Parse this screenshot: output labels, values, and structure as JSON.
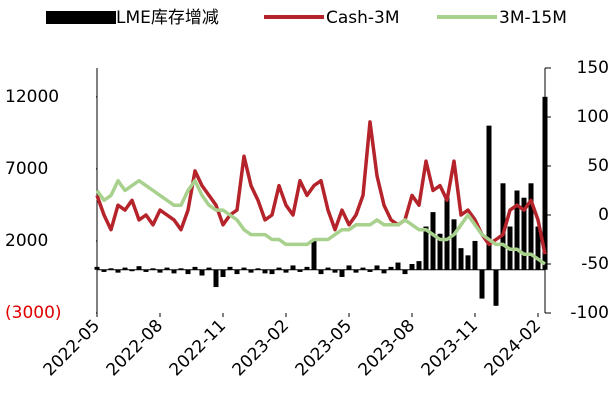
{
  "chart_data": {
    "type": "bar-line",
    "categories": [
      "2022-05",
      null,
      null,
      null,
      null,
      null,
      null,
      null,
      null,
      "2022-08",
      null,
      null,
      null,
      null,
      null,
      null,
      null,
      null,
      "2022-11",
      null,
      null,
      null,
      null,
      null,
      null,
      null,
      null,
      "2023-02",
      null,
      null,
      null,
      null,
      null,
      null,
      null,
      null,
      "2023-05",
      null,
      null,
      null,
      null,
      null,
      null,
      null,
      null,
      "2023-08",
      null,
      null,
      null,
      null,
      null,
      null,
      null,
      null,
      "2023-11",
      null,
      null,
      null,
      null,
      null,
      null,
      null,
      null,
      "2024-02",
      null
    ],
    "series": [
      {
        "name": "LME库存增减",
        "color": "#000000",
        "axis": "y",
        "values": [
          200,
          -150,
          100,
          -200,
          150,
          -100,
          250,
          -150,
          100,
          -200,
          150,
          -250,
          100,
          -300,
          200,
          -400,
          150,
          -1200,
          -500,
          200,
          -300,
          150,
          -200,
          100,
          -250,
          -300,
          150,
          -200,
          300,
          -150,
          200,
          2000,
          -300,
          150,
          -200,
          -500,
          300,
          -200,
          150,
          -150,
          300,
          -250,
          200,
          500,
          -300,
          400,
          600,
          3000,
          4000,
          2500,
          5000,
          3500,
          1500,
          1000,
          2000,
          -2000,
          10000,
          -2500,
          6000,
          3000,
          5500,
          5000,
          6000,
          3000,
          12000
        ]
      },
      {
        "name": "Cash-3M",
        "color": "#b5232b",
        "axis": "y2",
        "values": [
          20,
          0,
          -15,
          10,
          5,
          15,
          -5,
          0,
          -10,
          5,
          0,
          -5,
          -15,
          5,
          45,
          30,
          20,
          10,
          -10,
          0,
          5,
          60,
          30,
          15,
          -5,
          0,
          30,
          10,
          0,
          35,
          20,
          30,
          35,
          5,
          -15,
          5,
          -10,
          0,
          20,
          95,
          40,
          10,
          -5,
          -10,
          -5,
          20,
          10,
          55,
          25,
          30,
          15,
          55,
          0,
          5,
          -5,
          -20,
          -30,
          -25,
          -20,
          5,
          10,
          5,
          15,
          -5,
          -40
        ]
      },
      {
        "name": "3M-15M",
        "color": "#a9d18e",
        "axis": "y2",
        "values": [
          25,
          15,
          20,
          35,
          25,
          30,
          35,
          30,
          25,
          20,
          15,
          10,
          10,
          25,
          35,
          20,
          10,
          5,
          5,
          0,
          -5,
          -15,
          -20,
          -20,
          -20,
          -25,
          -25,
          -30,
          -30,
          -30,
          -30,
          -25,
          -25,
          -25,
          -20,
          -15,
          -15,
          -10,
          -10,
          -10,
          -5,
          -10,
          -10,
          -10,
          -5,
          -10,
          -15,
          -15,
          -20,
          -25,
          -25,
          -20,
          -10,
          0,
          -10,
          -20,
          -25,
          -30,
          -30,
          -35,
          -35,
          -40,
          -40,
          -45,
          -50
        ]
      }
    ],
    "ylim": [
      -3000,
      14000
    ],
    "yticks": [
      {
        "value": -3000,
        "label": "(3000)"
      },
      2000,
      7000,
      12000
    ],
    "y2lim": [
      -100,
      150
    ],
    "y2ticks": [
      -100,
      -50,
      0,
      50,
      100,
      150
    ]
  }
}
